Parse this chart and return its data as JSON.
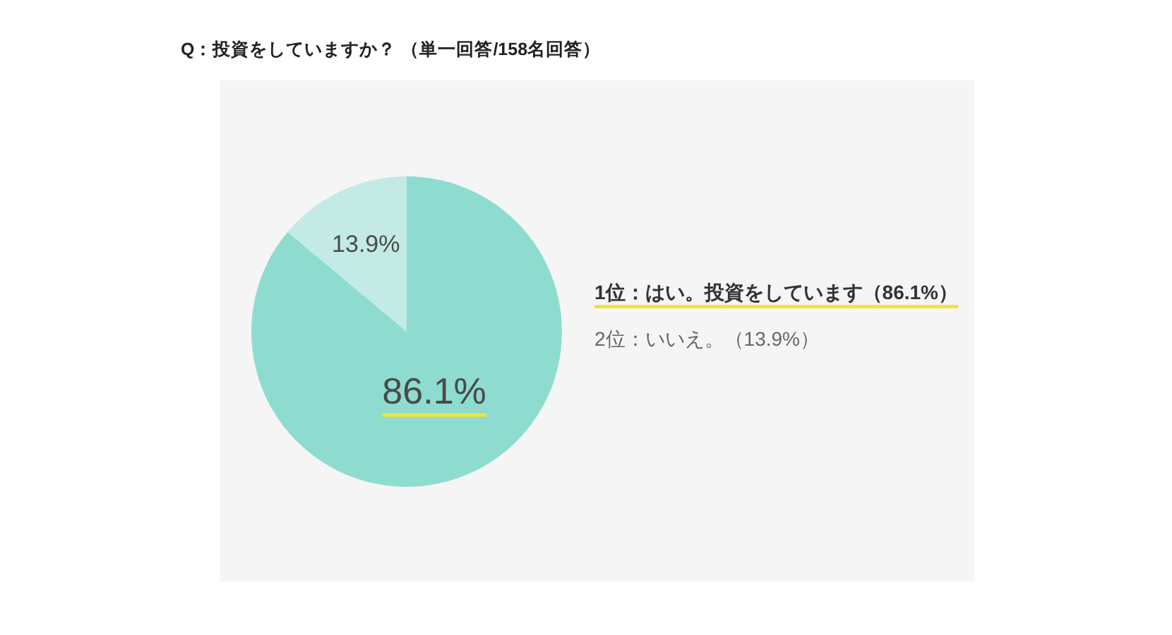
{
  "chart_data": {
    "type": "pie",
    "title": "Q：投資をしていますか？ （単一回答/158名回答）",
    "categories": [
      null,
      null
    ],
    "values": [
      86.1,
      13.9
    ],
    "colors": [
      "#8edcd0",
      "#c3eae4"
    ],
    "value_labels": [
      "86.1%",
      "13.9%"
    ],
    "annotations": [
      "1位：はい。投資をしています（86.1%）",
      "2位：いいえ。（13.9%）"
    ]
  }
}
